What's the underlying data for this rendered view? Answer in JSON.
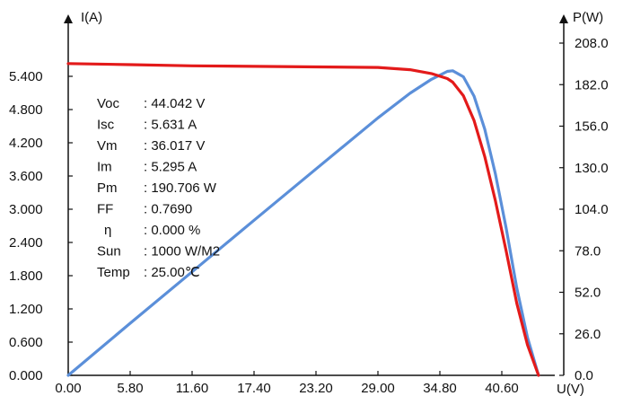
{
  "chart_data": {
    "type": "line",
    "title": "",
    "xlabel": "U(V)",
    "ylabel_left": "I(A)",
    "ylabel_right": "P(W)",
    "xlim": [
      0,
      46.4
    ],
    "ylim_left": [
      0,
      6.0
    ],
    "ylim_right": [
      0,
      208.0
    ],
    "x_ticks": [
      "0.00",
      "5.80",
      "11.60",
      "17.40",
      "23.20",
      "29.00",
      "34.80",
      "40.60"
    ],
    "y_left_ticks": [
      "0.000",
      "0.600",
      "1.200",
      "1.800",
      "2.400",
      "3.000",
      "3.600",
      "4.200",
      "4.800",
      "5.400"
    ],
    "y_right_ticks": [
      "0.0",
      "26.0",
      "52.0",
      "78.0",
      "104.0",
      "130.0",
      "156.0",
      "182.0",
      "208.0"
    ],
    "grid": false,
    "series": [
      {
        "name": "",
        "axis": "left",
        "color": "#e31a1a",
        "x": [
          0,
          5.8,
          11.6,
          17.4,
          23.2,
          29.0,
          32.0,
          34.0,
          35.5,
          36.0,
          37.0,
          38.0,
          39.0,
          40.0,
          41.0,
          42.0,
          43.0,
          44.04
        ],
        "y": [
          5.631,
          5.61,
          5.59,
          5.58,
          5.57,
          5.56,
          5.52,
          5.45,
          5.36,
          5.295,
          5.05,
          4.6,
          3.95,
          3.15,
          2.25,
          1.3,
          0.55,
          0.0
        ]
      },
      {
        "name": "",
        "axis": "right",
        "color": "#5b8fd9",
        "x": [
          0,
          5.8,
          11.6,
          17.4,
          23.2,
          29.0,
          32.0,
          34.0,
          35.5,
          36.0,
          37.0,
          38.0,
          39.0,
          40.0,
          41.0,
          42.0,
          43.0,
          44.04
        ],
        "y": [
          0,
          32.6,
          64.8,
          97.1,
          129.2,
          161.2,
          176.6,
          185.3,
          190.3,
          190.7,
          186.9,
          174.8,
          154.1,
          126.0,
          92.3,
          54.6,
          23.7,
          0
        ]
      }
    ],
    "annotations": [
      {
        "label": "Voc",
        "value": ": 44.042  V"
      },
      {
        "label": "Isc",
        "value": ": 5.631  A"
      },
      {
        "label": "Vm",
        "value": ": 36.017  V"
      },
      {
        "label": "Im",
        "value": ": 5.295  A"
      },
      {
        "label": "Pm",
        "value": ": 190.706  W"
      },
      {
        "label": "FF",
        "value": ": 0.7690"
      },
      {
        "label": "η",
        "value": ": 0.000  %"
      },
      {
        "label": "Sun",
        "value": ": 1000  W/M2"
      },
      {
        "label": "Temp",
        "value": ": 25.00℃"
      }
    ]
  }
}
